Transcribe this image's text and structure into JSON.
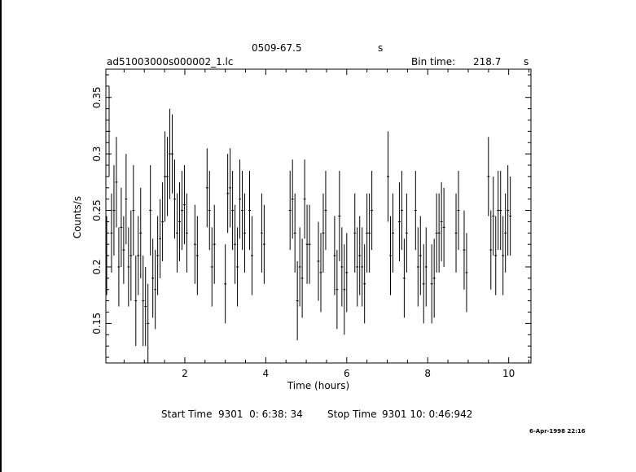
{
  "header": {
    "source": "0509-67.5",
    "unit_s": "s",
    "filename": "ad51003000s000002_1.lc",
    "bin_label": "Bin time:",
    "bin_value": "218.7",
    "bin_unit": "s"
  },
  "footer": {
    "start_label": "Start Time",
    "start_value": "9301  0: 6:38: 34",
    "stop_label": "Stop Time",
    "stop_value": "9301 10: 0:46:942",
    "datestamp": "6-Apr-1998 22:16"
  },
  "chart_data": {
    "type": "scatter",
    "xlabel": "Time (hours)",
    "ylabel": "Counts/s",
    "xlim": [
      0.05,
      10.55
    ],
    "ylim": [
      0.115,
      0.375
    ],
    "xticks": [
      2,
      4,
      6,
      8,
      10
    ],
    "xtick_labels": [
      "2",
      "4",
      "6",
      "8",
      "10"
    ],
    "yticks": [
      0.15,
      0.2,
      0.25,
      0.3,
      0.35
    ],
    "ytick_labels": [
      "0.15",
      "0.2",
      "0.25",
      "0.3",
      "0.35"
    ],
    "grid": false,
    "series": [
      {
        "x": [
          0.07,
          0.13,
          0.19,
          0.25,
          0.31,
          0.37,
          0.43,
          0.49,
          0.55,
          0.61,
          0.67,
          0.73,
          0.79,
          0.85,
          0.91,
          0.97,
          1.03,
          1.09,
          1.15,
          1.21,
          1.27,
          1.33,
          1.39,
          1.45,
          1.51,
          1.57,
          1.63,
          1.69,
          1.75,
          1.81,
          1.87,
          1.93,
          1.99,
          2.05,
          2.25,
          2.31,
          2.55,
          2.61,
          2.67,
          2.73,
          3.0,
          3.06,
          3.12,
          3.18,
          3.24,
          3.3,
          3.36,
          3.42,
          3.48,
          3.6,
          3.66,
          3.9,
          3.96,
          4.6,
          4.66,
          4.72,
          4.78,
          4.84,
          4.9,
          4.96,
          5.02,
          5.08,
          5.3,
          5.36,
          5.42,
          5.48,
          5.7,
          5.76,
          5.82,
          5.88,
          5.94,
          6.0,
          6.2,
          6.26,
          6.32,
          6.38,
          6.44,
          6.5,
          6.56,
          6.62,
          7.02,
          7.08,
          7.14,
          7.3,
          7.36,
          7.42,
          7.48,
          7.7,
          7.76,
          7.82,
          7.9,
          7.96,
          8.1,
          8.16,
          8.22,
          8.28,
          8.34,
          8.4,
          8.7,
          8.76,
          8.9,
          8.96,
          9.5,
          9.56,
          9.62,
          9.68,
          9.74,
          9.8,
          9.86,
          9.92,
          9.98,
          10.04
        ],
        "y": [
          0.21,
          0.32,
          0.23,
          0.25,
          0.275,
          0.2,
          0.235,
          0.215,
          0.26,
          0.2,
          0.21,
          0.25,
          0.17,
          0.21,
          0.23,
          0.17,
          0.165,
          0.15,
          0.25,
          0.19,
          0.18,
          0.21,
          0.225,
          0.24,
          0.28,
          0.28,
          0.3,
          0.3,
          0.26,
          0.23,
          0.24,
          0.25,
          0.255,
          0.23,
          0.22,
          0.21,
          0.27,
          0.25,
          0.2,
          0.22,
          0.185,
          0.265,
          0.27,
          0.25,
          0.22,
          0.2,
          0.26,
          0.25,
          0.23,
          0.25,
          0.21,
          0.23,
          0.22,
          0.25,
          0.26,
          0.23,
          0.17,
          0.2,
          0.19,
          0.26,
          0.22,
          0.22,
          0.205,
          0.195,
          0.23,
          0.25,
          0.21,
          0.18,
          0.245,
          0.2,
          0.18,
          0.195,
          0.23,
          0.2,
          0.21,
          0.2,
          0.185,
          0.23,
          0.23,
          0.25,
          0.28,
          0.21,
          0.23,
          0.24,
          0.25,
          0.19,
          0.23,
          0.25,
          0.2,
          0.21,
          0.185,
          0.2,
          0.185,
          0.19,
          0.23,
          0.23,
          0.24,
          0.235,
          0.23,
          0.25,
          0.215,
          0.195,
          0.28,
          0.215,
          0.245,
          0.21,
          0.25,
          0.25,
          0.21,
          0.23,
          0.25,
          0.245
        ],
        "yerr": [
          0.035,
          0.04,
          0.035,
          0.04,
          0.04,
          0.035,
          0.035,
          0.03,
          0.04,
          0.035,
          0.04,
          0.04,
          0.04,
          0.035,
          0.04,
          0.04,
          0.035,
          0.035,
          0.04,
          0.035,
          0.035,
          0.035,
          0.035,
          0.035,
          0.04,
          0.035,
          0.04,
          0.035,
          0.035,
          0.035,
          0.035,
          0.035,
          0.035,
          0.035,
          0.035,
          0.035,
          0.035,
          0.035,
          0.035,
          0.035,
          0.035,
          0.035,
          0.035,
          0.035,
          0.035,
          0.035,
          0.035,
          0.035,
          0.035,
          0.035,
          0.035,
          0.035,
          0.035,
          0.035,
          0.035,
          0.035,
          0.035,
          0.035,
          0.035,
          0.035,
          0.035,
          0.035,
          0.035,
          0.035,
          0.035,
          0.035,
          0.035,
          0.035,
          0.04,
          0.035,
          0.04,
          0.035,
          0.035,
          0.035,
          0.035,
          0.035,
          0.035,
          0.035,
          0.035,
          0.035,
          0.04,
          0.035,
          0.035,
          0.035,
          0.035,
          0.035,
          0.035,
          0.035,
          0.035,
          0.035,
          0.035,
          0.035,
          0.035,
          0.035,
          0.035,
          0.035,
          0.035,
          0.035,
          0.035,
          0.035,
          0.035,
          0.035,
          0.035,
          0.035,
          0.035,
          0.035,
          0.035,
          0.035,
          0.035,
          0.035,
          0.04,
          0.035
        ],
        "xerr": 0.03
      }
    ]
  }
}
